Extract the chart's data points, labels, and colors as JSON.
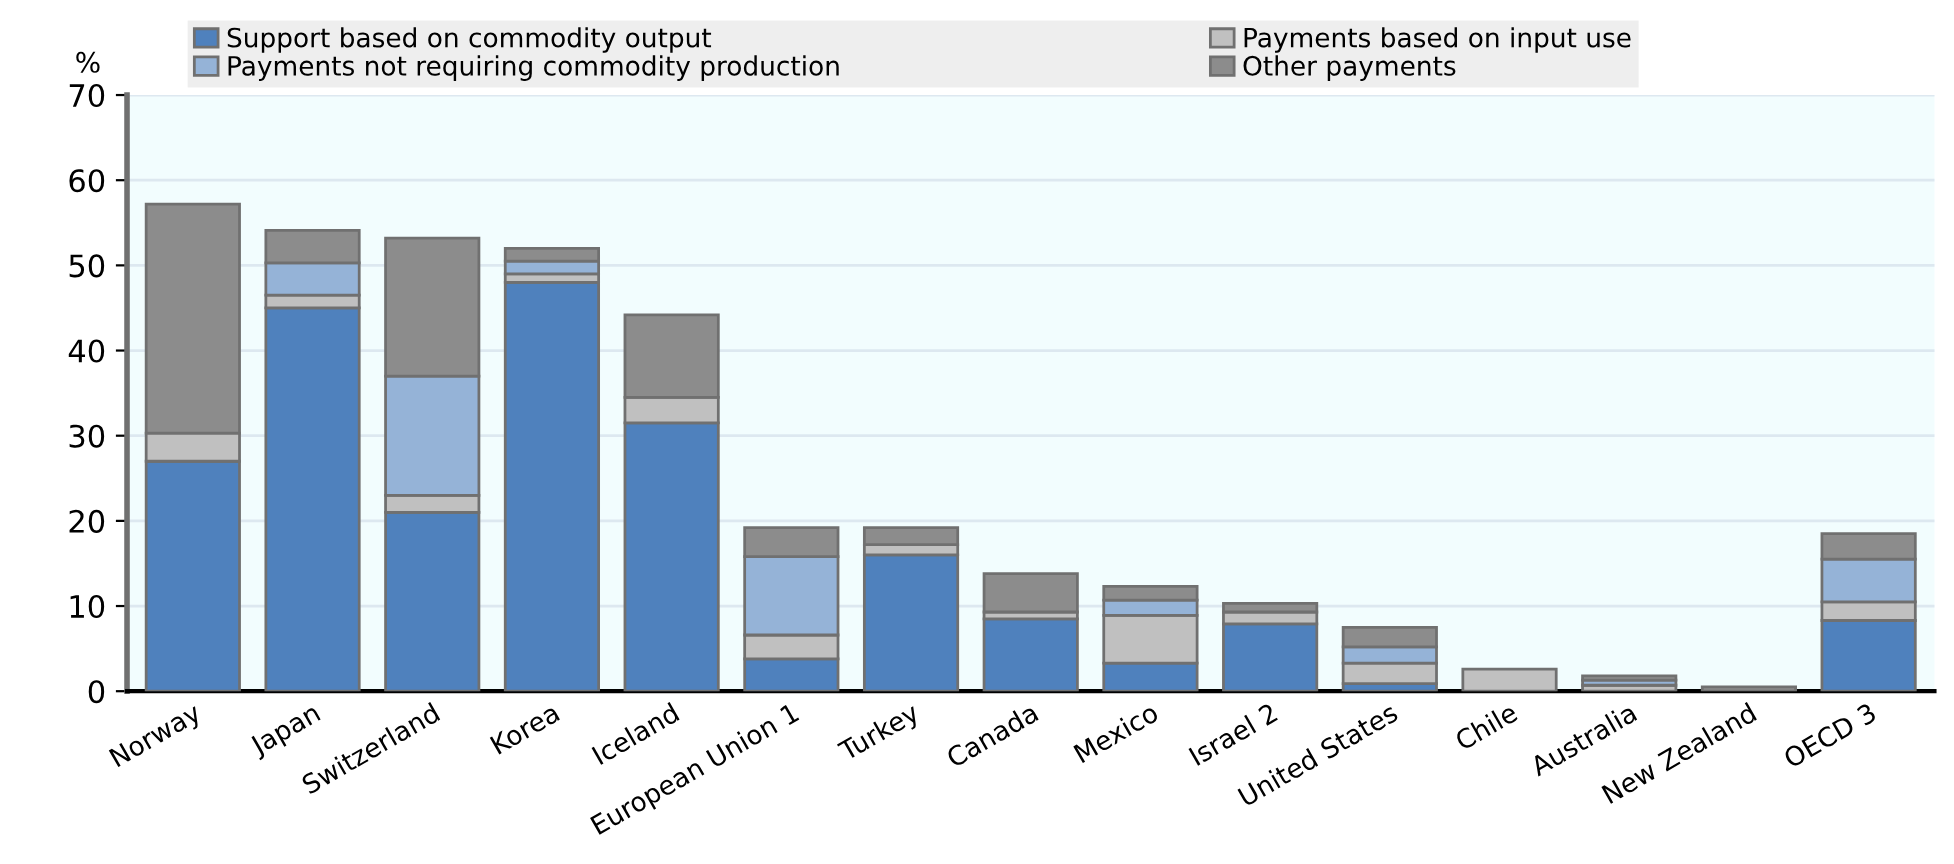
{
  "chart_data": {
    "type": "bar",
    "stacked": true,
    "ylabel": "%",
    "categories": [
      "Norway",
      "Japan",
      "Switzerland",
      "Korea",
      "Iceland",
      "European Union 1",
      "Turkey",
      "Canada",
      "Mexico",
      "Israel 2",
      "United States",
      "Chile",
      "Australia",
      "New Zealand",
      "OECD 3"
    ],
    "series": [
      {
        "name": "Support based on commodity output",
        "color": "#4f81bd",
        "values": [
          27,
          45,
          21,
          48,
          31.5,
          3.8,
          16,
          8.5,
          3.3,
          7.9,
          0.9,
          0,
          null,
          null,
          8.3
        ]
      },
      {
        "name": "Payments based on input use",
        "color": "#c0c0c0",
        "values": [
          3.3,
          1.5,
          2,
          1,
          3,
          2.8,
          1.2,
          0.8,
          5.6,
          1.4,
          2.4,
          2.6,
          0.7,
          0,
          2.2
        ]
      },
      {
        "name": "Payments not requiring commodity production",
        "color": "#95b3d7",
        "values": [
          0,
          3.8,
          14,
          1.5,
          0,
          9.2,
          0,
          0,
          1.8,
          0,
          1.9,
          0,
          0.6,
          0,
          5
        ]
      },
      {
        "name": "Other payments",
        "color": "#8c8c8c",
        "values": [
          26.9,
          3.8,
          16.2,
          1.5,
          9.7,
          3.4,
          2,
          4.5,
          1.6,
          1,
          2.3,
          0,
          0.5,
          0.5,
          3
        ]
      }
    ],
    "ylim": [
      0,
      70
    ],
    "yticks": [
      0,
      10,
      20,
      30,
      40,
      50,
      60,
      70
    ],
    "grid": "y",
    "legend": "top"
  }
}
